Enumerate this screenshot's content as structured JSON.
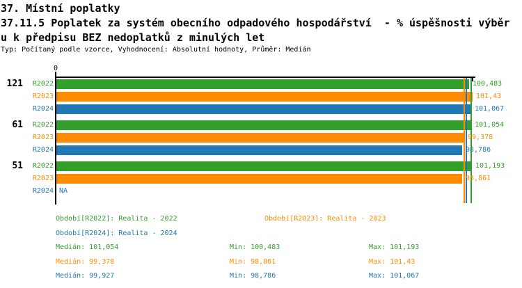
{
  "title": {
    "line1": "37. Místní poplatky",
    "line2": "37.11.5 Poplatek za systém obecního odpadového hospodářství  - % úspěšnosti výběr",
    "line3": "u k předpisu BEZ nedoplatků z minulých let",
    "meta": "Typ: Počítaný podle vzorce, Vyhodnocení: Absolutní hodnoty, Průměr: Medián"
  },
  "colors": {
    "R2022": "#33A02C",
    "R2023": "#FF8C00",
    "R2024": "#2277B5",
    "axis": "#000000"
  },
  "axis": {
    "zero_label": "0"
  },
  "na_label": "NA",
  "chart_data": {
    "type": "bar",
    "orientation": "horizontal",
    "x_axis": {
      "min": 0,
      "zero_tick": "0",
      "max_tick_value": 101.193
    },
    "grid": false,
    "groups": [
      {
        "label": "121",
        "bars": [
          {
            "series": "R2022",
            "value": 100.483,
            "display": "100,483"
          },
          {
            "series": "R2023",
            "value": 101.43,
            "display": "101,43"
          },
          {
            "series": "R2024",
            "value": 101.067,
            "display": "101,067"
          }
        ]
      },
      {
        "label": "61",
        "bars": [
          {
            "series": "R2022",
            "value": 101.054,
            "display": "101,054"
          },
          {
            "series": "R2023",
            "value": 99.378,
            "display": "99,378"
          },
          {
            "series": "R2024",
            "value": 98.786,
            "display": "98,786"
          }
        ]
      },
      {
        "label": "51",
        "bars": [
          {
            "series": "R2022",
            "value": 101.193,
            "display": "101,193"
          },
          {
            "series": "R2023",
            "value": 98.861,
            "display": "98,861"
          },
          {
            "series": "R2024",
            "value": null,
            "display": "NA"
          }
        ]
      }
    ],
    "median_lines": [
      {
        "series": "R2022",
        "value": 101.054
      },
      {
        "series": "R2023",
        "value": 99.378
      },
      {
        "series": "R2024",
        "value": 99.927
      }
    ]
  },
  "legend": [
    {
      "series": "R2022",
      "label": "Období[R2022]: Realita - 2022"
    },
    {
      "series": "R2023",
      "label": "Období[R2023]: Realita - 2023"
    },
    {
      "series": "R2024",
      "label": "Období[R2024]: Realita - 2024"
    }
  ],
  "stats": [
    {
      "series": "R2022",
      "median": "Medián: 101,054",
      "min": "Min: 100,483",
      "max": "Max: 101,193"
    },
    {
      "series": "R2023",
      "median": "Medián: 99,378",
      "min": "Min: 98,861",
      "max": "Max: 101,43"
    },
    {
      "series": "R2024",
      "median": "Medián: 99,927",
      "min": "Min: 98,786",
      "max": "Max: 101,067"
    }
  ]
}
